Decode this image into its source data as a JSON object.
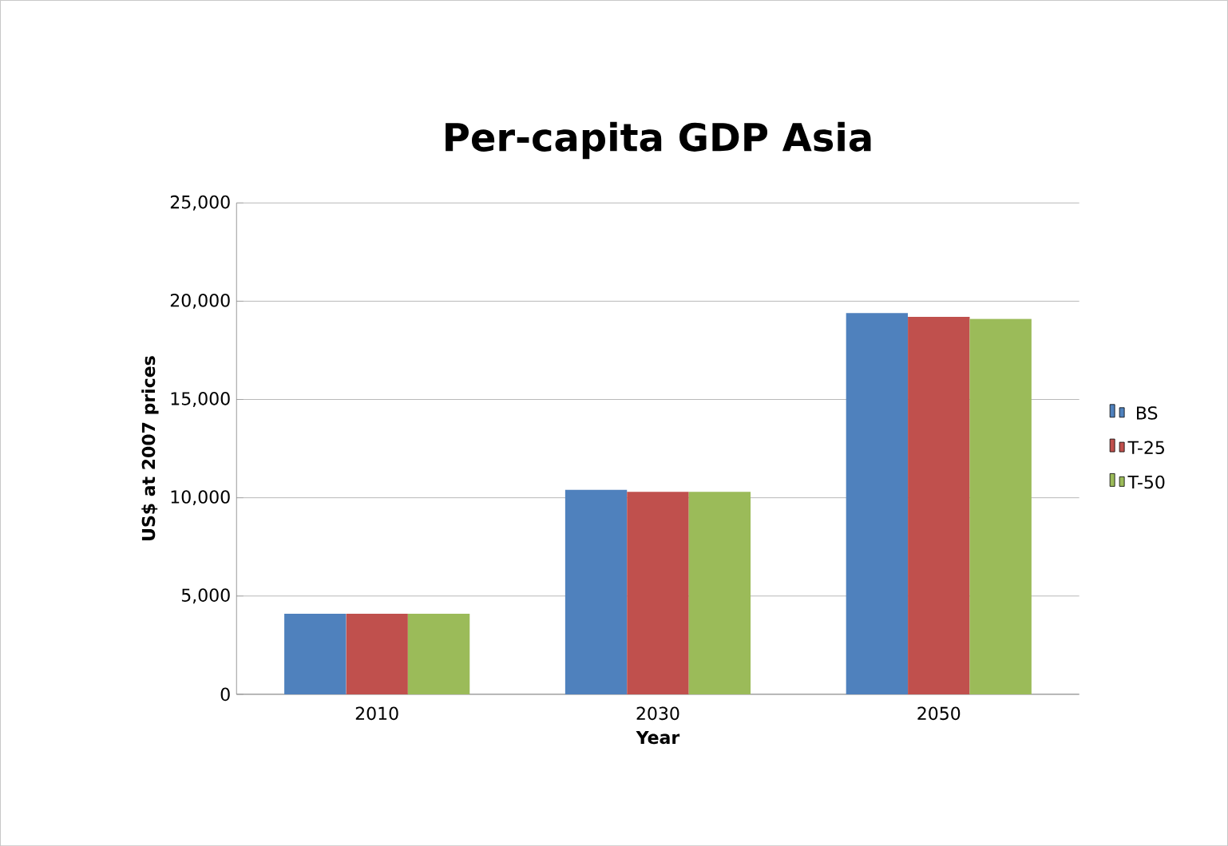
{
  "chart_data": {
    "type": "bar",
    "title": "Per-capita GDP Asia",
    "xlabel": "Year",
    "ylabel": "US$ at 2007 prices",
    "categories": [
      "2010",
      "2030",
      "2050"
    ],
    "series": [
      {
        "name": "BS",
        "color": "#4f81bd",
        "values": [
          4100,
          10400,
          19400
        ]
      },
      {
        "name": "T-25",
        "color": "#c0504d",
        "values": [
          4100,
          10300,
          19200
        ]
      },
      {
        "name": "T-50",
        "color": "#9bbb59",
        "values": [
          4100,
          10300,
          19100
        ]
      }
    ],
    "ylim": [
      0,
      25000
    ],
    "yticks": [
      {
        "value": 0,
        "label": "0"
      },
      {
        "value": 5000,
        "label": "5,000"
      },
      {
        "value": 10000,
        "label": "10,000"
      },
      {
        "value": 15000,
        "label": "15,000"
      },
      {
        "value": 20000,
        "label": "20,000"
      },
      {
        "value": 25000,
        "label": "25,000"
      }
    ],
    "grid": "y",
    "legend": "right"
  }
}
